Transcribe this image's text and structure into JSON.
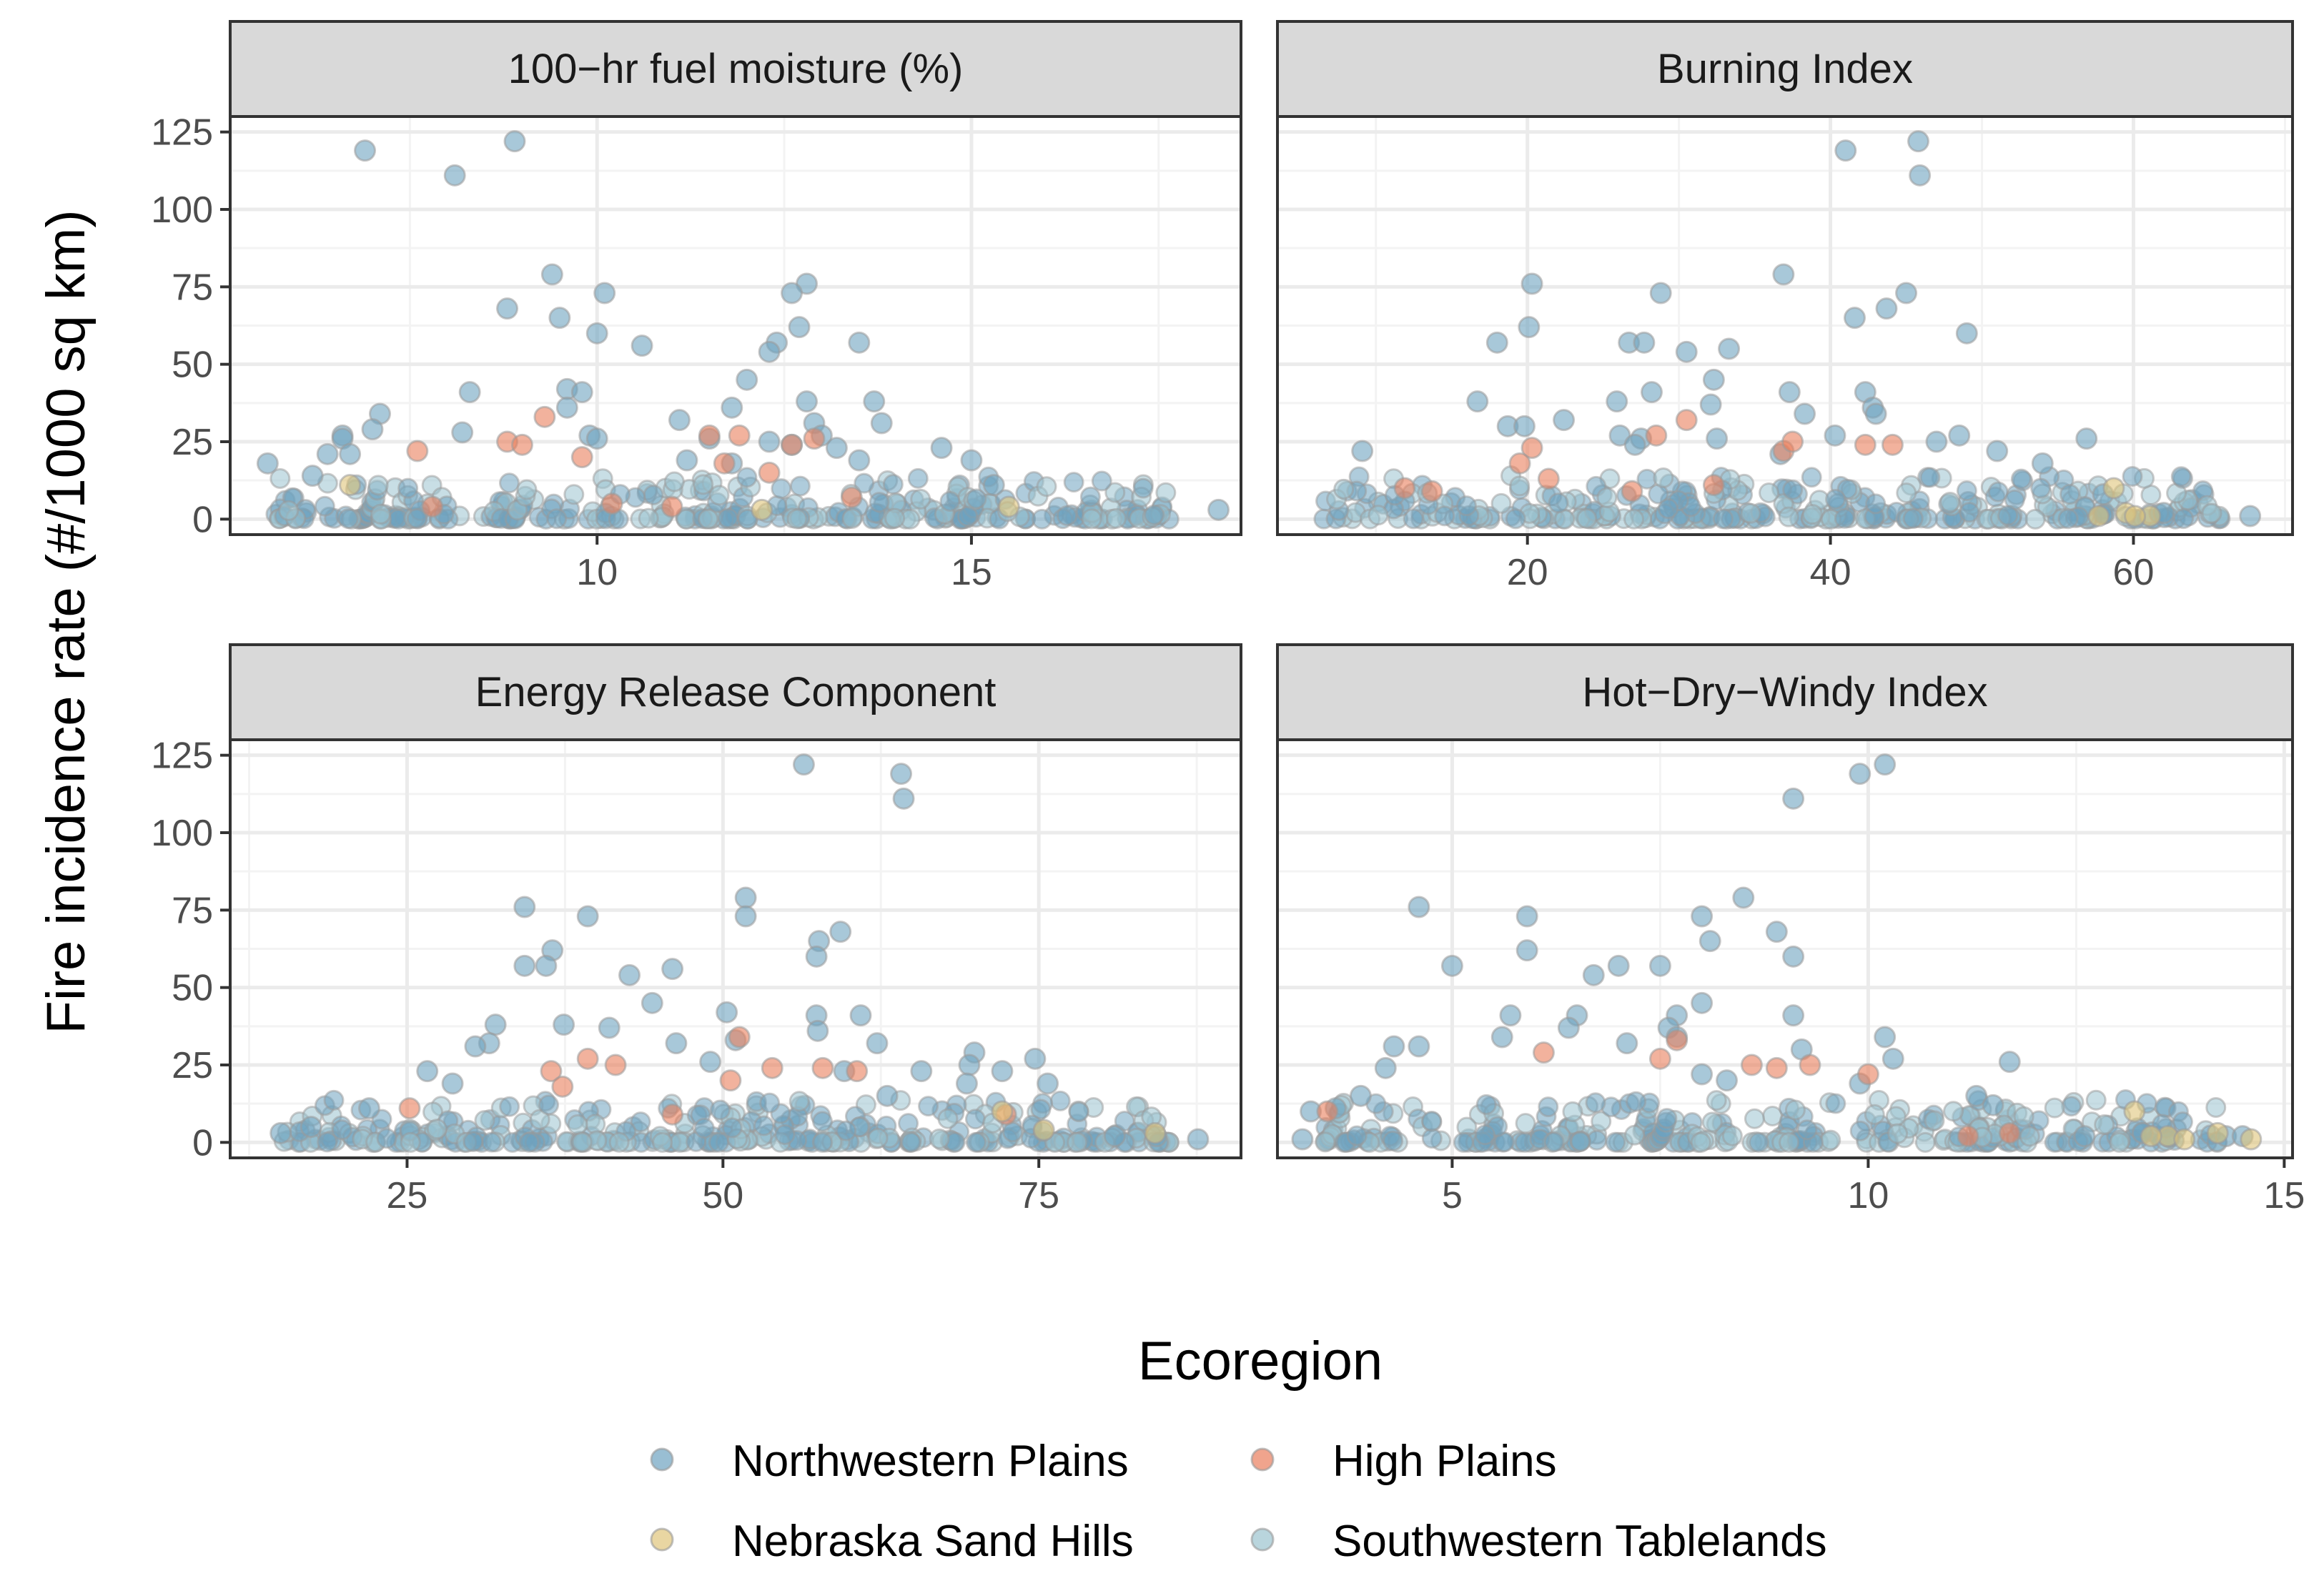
{
  "chart_data": {
    "type": "scatter",
    "y_label": "Fire incidence rate (#/1000 sq km)",
    "y_ticks": [
      0,
      25,
      50,
      75,
      100,
      125
    ],
    "ylim": [
      -5,
      130
    ],
    "legend": {
      "title": "Ecoregion",
      "position": "bottom",
      "items": [
        {
          "label": "Northwestern Plains",
          "color": "#6ea3c0"
        },
        {
          "label": "High Plains",
          "color": "#ea7e5c"
        },
        {
          "label": "Nebraska Sand Hills",
          "color": "#e0c47a"
        },
        {
          "label": "Southwestern Tablelands",
          "color": "#9bc3cf"
        }
      ]
    },
    "panels": [
      {
        "title": "100−hr fuel moisture (%)",
        "xlim": [
          5.1,
          18.6
        ],
        "x_ticks": [
          10,
          15
        ],
        "points": [
          [
            5.6,
            18,
            0
          ],
          [
            6.9,
            119,
            0
          ],
          [
            8.9,
            122,
            0
          ],
          [
            8.1,
            111,
            0
          ],
          [
            9.4,
            79,
            0
          ],
          [
            8.8,
            68,
            0
          ],
          [
            10.1,
            73,
            0
          ],
          [
            9.5,
            65,
            0
          ],
          [
            10.0,
            60,
            0
          ],
          [
            10.6,
            56,
            0
          ],
          [
            9.6,
            42,
            0
          ],
          [
            9.8,
            41,
            0
          ],
          [
            8.3,
            41,
            0
          ],
          [
            9.6,
            36,
            0
          ],
          [
            7.1,
            34,
            0
          ],
          [
            7.0,
            29,
            0
          ],
          [
            8.2,
            28,
            0
          ],
          [
            9.9,
            27,
            0
          ],
          [
            10.0,
            26,
            0
          ],
          [
            6.6,
            27,
            0
          ],
          [
            6.6,
            26,
            0
          ],
          [
            6.4,
            21,
            0
          ],
          [
            6.7,
            21,
            0
          ],
          [
            6.2,
            14,
            0
          ],
          [
            12.8,
            76,
            0
          ],
          [
            12.6,
            73,
            0
          ],
          [
            12.7,
            62,
            0
          ],
          [
            12.4,
            57,
            0
          ],
          [
            12.3,
            54,
            0
          ],
          [
            13.5,
            57,
            0
          ],
          [
            12.0,
            45,
            0
          ],
          [
            11.8,
            36,
            0
          ],
          [
            12.8,
            38,
            0
          ],
          [
            13.7,
            38,
            0
          ],
          [
            11.1,
            32,
            0
          ],
          [
            12.9,
            31,
            0
          ],
          [
            13.8,
            31,
            0
          ],
          [
            13.0,
            27,
            0
          ],
          [
            11.5,
            26,
            0
          ],
          [
            12.3,
            25,
            0
          ],
          [
            12.6,
            24,
            0
          ],
          [
            13.2,
            23,
            0
          ],
          [
            14.6,
            23,
            0
          ],
          [
            11.2,
            19,
            0
          ],
          [
            11.8,
            18,
            0
          ],
          [
            13.5,
            19,
            0
          ],
          [
            15.0,
            19,
            0
          ],
          [
            15.3,
            11,
            0
          ],
          [
            18.3,
            3,
            0
          ],
          [
            9.3,
            33,
            1
          ],
          [
            9.8,
            20,
            1
          ],
          [
            8.8,
            25,
            1
          ],
          [
            9.0,
            24,
            1
          ],
          [
            7.6,
            22,
            1
          ],
          [
            11.5,
            27,
            1
          ],
          [
            11.9,
            27,
            1
          ],
          [
            12.6,
            24,
            1
          ],
          [
            12.9,
            26,
            1
          ],
          [
            11.7,
            18,
            1
          ],
          [
            12.3,
            15,
            1
          ],
          [
            13.4,
            7,
            1
          ],
          [
            10.2,
            5,
            1
          ],
          [
            7.8,
            4,
            1
          ],
          [
            11.0,
            4,
            1
          ],
          [
            6.7,
            11,
            2
          ],
          [
            12.2,
            3,
            2
          ],
          [
            15.5,
            4,
            2
          ]
        ]
      },
      {
        "title": "Burning Index",
        "xlim": [
          3.5,
          70.5
        ],
        "x_ticks": [
          20,
          40,
          60
        ],
        "points": [
          [
            45.8,
            122,
            0
          ],
          [
            41.0,
            119,
            0
          ],
          [
            45.9,
            111,
            0
          ],
          [
            36.9,
            79,
            0
          ],
          [
            20.3,
            76,
            0
          ],
          [
            28.8,
            73,
            0
          ],
          [
            45.0,
            73,
            0
          ],
          [
            43.7,
            68,
            0
          ],
          [
            49.0,
            60,
            0
          ],
          [
            41.6,
            65,
            0
          ],
          [
            20.1,
            62,
            0
          ],
          [
            33.3,
            55,
            0
          ],
          [
            30.5,
            54,
            0
          ],
          [
            26.7,
            57,
            0
          ],
          [
            27.7,
            57,
            0
          ],
          [
            18.0,
            57,
            0
          ],
          [
            42.3,
            41,
            0
          ],
          [
            32.3,
            45,
            0
          ],
          [
            37.3,
            41,
            0
          ],
          [
            42.8,
            36,
            0
          ],
          [
            28.2,
            41,
            0
          ],
          [
            25.9,
            38,
            0
          ],
          [
            16.7,
            38,
            0
          ],
          [
            43.0,
            34,
            0
          ],
          [
            32.1,
            37,
            0
          ],
          [
            38.3,
            34,
            0
          ],
          [
            48.5,
            27,
            0
          ],
          [
            56.9,
            26,
            0
          ],
          [
            51.0,
            22,
            0
          ],
          [
            54.0,
            18,
            0
          ],
          [
            9.1,
            22,
            0
          ],
          [
            22.4,
            32,
            0
          ],
          [
            18.7,
            30,
            0
          ],
          [
            19.8,
            30,
            0
          ],
          [
            26.1,
            27,
            0
          ],
          [
            27.5,
            26,
            0
          ],
          [
            27.1,
            24,
            0
          ],
          [
            32.5,
            26,
            0
          ],
          [
            47.0,
            25,
            0
          ],
          [
            40.3,
            27,
            0
          ],
          [
            58.0,
            8,
            0
          ],
          [
            62.0,
            2,
            0
          ],
          [
            67.7,
            1,
            0
          ],
          [
            36.7,
            21,
            0
          ],
          [
            20.3,
            23,
            1
          ],
          [
            19.5,
            18,
            1
          ],
          [
            28.5,
            27,
            1
          ],
          [
            30.5,
            32,
            1
          ],
          [
            36.9,
            22,
            1
          ],
          [
            37.5,
            25,
            1
          ],
          [
            42.3,
            24,
            1
          ],
          [
            44.1,
            24,
            1
          ],
          [
            11.9,
            10,
            1
          ],
          [
            13.7,
            9,
            1
          ],
          [
            26.9,
            9,
            1
          ],
          [
            32.3,
            11,
            1
          ],
          [
            21.4,
            13,
            1
          ],
          [
            58.7,
            10,
            2
          ],
          [
            61.1,
            1,
            2
          ],
          [
            59.5,
            2,
            2
          ],
          [
            57.7,
            1,
            2
          ],
          [
            60.1,
            1,
            2
          ]
        ]
      },
      {
        "title": "Energy Release Component",
        "xlim": [
          11,
          91
        ],
        "x_ticks": [
          25,
          50,
          75
        ],
        "points": [
          [
            56.4,
            122,
            0
          ],
          [
            64.1,
            119,
            0
          ],
          [
            64.3,
            111,
            0
          ],
          [
            51.8,
            79,
            0
          ],
          [
            34.3,
            76,
            0
          ],
          [
            51.8,
            73,
            0
          ],
          [
            39.3,
            73,
            0
          ],
          [
            59.3,
            68,
            0
          ],
          [
            57.6,
            65,
            0
          ],
          [
            36.5,
            62,
            0
          ],
          [
            57.4,
            60,
            0
          ],
          [
            34.3,
            57,
            0
          ],
          [
            36.0,
            57,
            0
          ],
          [
            46.0,
            56,
            0
          ],
          [
            42.6,
            54,
            0
          ],
          [
            44.4,
            45,
            0
          ],
          [
            50.3,
            42,
            0
          ],
          [
            37.4,
            38,
            0
          ],
          [
            41.0,
            37,
            0
          ],
          [
            32.0,
            38,
            0
          ],
          [
            57.4,
            41,
            0
          ],
          [
            60.9,
            41,
            0
          ],
          [
            57.5,
            36,
            0
          ],
          [
            51.0,
            33,
            0
          ],
          [
            46.3,
            32,
            0
          ],
          [
            31.5,
            32,
            0
          ],
          [
            30.4,
            31,
            0
          ],
          [
            62.2,
            32,
            0
          ],
          [
            69.9,
            29,
            0
          ],
          [
            74.7,
            27,
            0
          ],
          [
            69.5,
            25,
            0
          ],
          [
            59.6,
            23,
            0
          ],
          [
            65.7,
            23,
            0
          ],
          [
            72.1,
            23,
            0
          ],
          [
            75.7,
            19,
            0
          ],
          [
            69.3,
            19,
            0
          ],
          [
            26.6,
            23,
            0
          ],
          [
            28.6,
            19,
            0
          ],
          [
            22.0,
            11,
            0
          ],
          [
            17.4,
            5,
            0
          ],
          [
            15.0,
            3,
            0
          ],
          [
            81.0,
            2,
            0
          ],
          [
            84.3,
            2,
            0
          ],
          [
            87.6,
            1,
            0
          ],
          [
            63.0,
            15,
            0
          ],
          [
            49.0,
            26,
            0
          ],
          [
            25.2,
            11,
            1
          ],
          [
            36.4,
            23,
            1
          ],
          [
            37.3,
            18,
            1
          ],
          [
            39.3,
            27,
            1
          ],
          [
            41.5,
            25,
            1
          ],
          [
            51.3,
            34,
            1
          ],
          [
            53.9,
            24,
            1
          ],
          [
            57.9,
            24,
            1
          ],
          [
            60.6,
            23,
            1
          ],
          [
            50.6,
            20,
            1
          ],
          [
            72.4,
            9,
            1
          ],
          [
            46.0,
            9,
            1
          ],
          [
            84.2,
            3,
            2
          ],
          [
            72.1,
            10,
            2
          ],
          [
            75.4,
            4,
            2
          ]
        ]
      },
      {
        "title": "Hot−Dry−Windy Index",
        "xlim": [
          2.9,
          15.1
        ],
        "x_ticks": [
          5,
          10,
          15
        ],
        "points": [
          [
            10.2,
            122,
            0
          ],
          [
            9.9,
            119,
            0
          ],
          [
            9.1,
            111,
            0
          ],
          [
            8.5,
            79,
            0
          ],
          [
            4.6,
            76,
            0
          ],
          [
            5.9,
            73,
            0
          ],
          [
            8.0,
            73,
            0
          ],
          [
            8.9,
            68,
            0
          ],
          [
            8.1,
            65,
            0
          ],
          [
            5.9,
            62,
            0
          ],
          [
            9.1,
            60,
            0
          ],
          [
            5.0,
            57,
            0
          ],
          [
            7.0,
            57,
            0
          ],
          [
            7.5,
            57,
            0
          ],
          [
            6.7,
            54,
            0
          ],
          [
            8.0,
            45,
            0
          ],
          [
            9.1,
            41,
            0
          ],
          [
            6.5,
            41,
            0
          ],
          [
            7.7,
            41,
            0
          ],
          [
            5.7,
            41,
            0
          ],
          [
            7.6,
            37,
            0
          ],
          [
            6.4,
            37,
            0
          ],
          [
            7.7,
            34,
            0
          ],
          [
            10.2,
            34,
            0
          ],
          [
            5.6,
            34,
            0
          ],
          [
            4.3,
            31,
            0
          ],
          [
            4.6,
            31,
            0
          ],
          [
            7.1,
            32,
            0
          ],
          [
            9.2,
            30,
            0
          ],
          [
            10.3,
            27,
            0
          ],
          [
            11.7,
            26,
            0
          ],
          [
            8.0,
            22,
            0
          ],
          [
            8.3,
            20,
            0
          ],
          [
            9.9,
            19,
            0
          ],
          [
            11.3,
            15,
            0
          ],
          [
            11.5,
            12,
            0
          ],
          [
            4.2,
            24,
            0
          ],
          [
            3.9,
            15,
            0
          ],
          [
            3.6,
            11,
            0
          ],
          [
            3.3,
            10,
            0
          ],
          [
            12.6,
            2,
            0
          ],
          [
            13.3,
            3,
            0
          ],
          [
            14.3,
            2,
            0
          ],
          [
            14.5,
            2,
            0
          ],
          [
            3.2,
            1,
            0
          ],
          [
            3.5,
            10,
            1
          ],
          [
            7.5,
            27,
            1
          ],
          [
            7.7,
            33,
            1
          ],
          [
            8.6,
            25,
            1
          ],
          [
            8.9,
            24,
            1
          ],
          [
            9.3,
            25,
            1
          ],
          [
            10.0,
            22,
            1
          ],
          [
            11.2,
            2,
            1
          ],
          [
            11.7,
            3,
            1
          ],
          [
            6.1,
            29,
            1
          ],
          [
            13.2,
            10,
            2
          ],
          [
            13.6,
            2,
            2
          ],
          [
            13.8,
            1,
            2
          ],
          [
            14.2,
            3,
            2
          ],
          [
            14.6,
            1,
            2
          ],
          [
            13.4,
            2,
            2
          ]
        ]
      }
    ]
  }
}
